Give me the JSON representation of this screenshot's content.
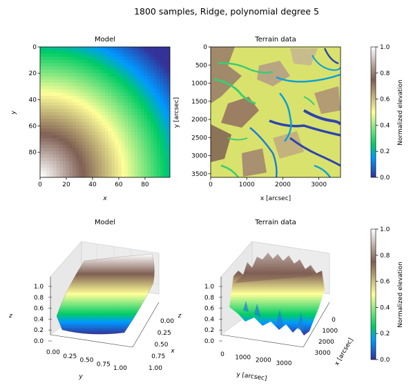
{
  "figure": {
    "suptitle": "1800 samples, Ridge, polynomial degree 5"
  },
  "colormap": {
    "name": "terrain",
    "stops": [
      [
        0.0,
        "#333399"
      ],
      [
        0.15,
        "#0199ff"
      ],
      [
        0.25,
        "#00cc66"
      ],
      [
        0.5,
        "#ffff99"
      ],
      [
        0.75,
        "#7f5f53"
      ],
      [
        1.0,
        "#ffffff"
      ]
    ]
  },
  "chart_data": [
    {
      "type": "heatmap",
      "title": "Model",
      "xlabel": "x",
      "ylabel": "y",
      "x_ticks": [
        0,
        20,
        40,
        60,
        80
      ],
      "y_ticks": [
        0,
        20,
        40,
        60,
        80
      ],
      "xlim": [
        0,
        99
      ],
      "ylim": [
        99,
        0
      ],
      "surface": "normalized elevation ≈ radial ridge falling from 1 at (x=0,y=99) to 0 at (x=99,y=0)"
    },
    {
      "type": "heatmap",
      "title": "Terrain data",
      "xlabel": "x [arcsec]",
      "ylabel": "y [arcsec]",
      "x_ticks": [
        0,
        1000,
        2000,
        3000
      ],
      "y_ticks": [
        0,
        500,
        1000,
        1500,
        2000,
        2500,
        3000,
        3500
      ],
      "xlim": [
        0,
        3600
      ],
      "ylim": [
        3600,
        0
      ]
    },
    {
      "type": "colorbar",
      "label": "Normalized elevation",
      "ticks": [
        "0.0",
        "0.2",
        "0.4",
        "0.6",
        "0.8",
        "1.0"
      ],
      "range": [
        0,
        1
      ]
    },
    {
      "type": "surface",
      "title": "Model",
      "xlabel": "x",
      "ylabel": "y",
      "zlabel": "z",
      "x_ticks": [
        "0.00",
        "0.25",
        "0.50",
        "0.75",
        "1.00"
      ],
      "y_ticks": [
        "0.00",
        "0.25",
        "0.50",
        "0.75",
        "1.00"
      ],
      "z_ticks": [
        "0.0",
        "0.2",
        "0.4",
        "0.6",
        "0.8",
        "1.0"
      ],
      "zlim": [
        0,
        1
      ]
    },
    {
      "type": "surface",
      "title": "Terrain data",
      "xlabel": "x [arcsec]",
      "ylabel": "y [arcsec]",
      "x_ticks": [
        "0",
        "1000",
        "2000",
        "3000"
      ],
      "y_ticks": [
        "0",
        "1000",
        "2000",
        "3000"
      ],
      "z_ticks": [
        "0.0",
        "0.2",
        "0.4",
        "0.6",
        "0.8",
        "1.0"
      ],
      "zlim": [
        0,
        1
      ]
    },
    {
      "type": "colorbar",
      "label": "Normalized elevation",
      "ticks": [
        "0.0",
        "0.2",
        "0.4",
        "0.6",
        "0.8",
        "1.0"
      ],
      "range": [
        0,
        1
      ]
    }
  ]
}
